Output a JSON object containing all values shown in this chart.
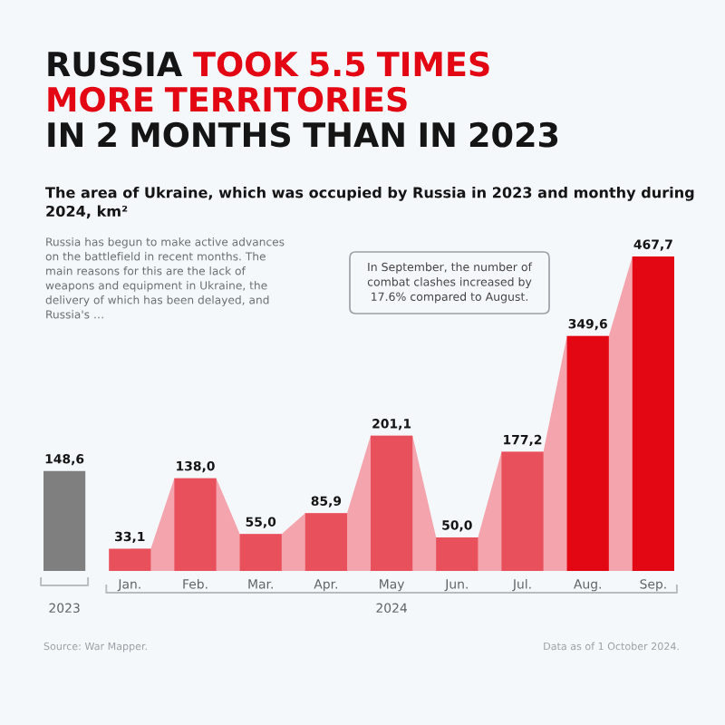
{
  "chart_data": {
    "type": "bar",
    "title": "RUSSIA TOOK 5.5 TIMES\nMORE TERRITORIES\nIN 2 MONTHS THAN IN 2023",
    "subtitle": "The area of Ukraine, which was occupied by Russia in 2023 and monthy during\n2024, km²",
    "categories": [
      null,
      "Jan.",
      "Feb.",
      "Mar.",
      "Apr.",
      "May",
      "Jun.",
      "Jul.",
      "Aug.",
      "Sep."
    ],
    "series": [
      {
        "type": "area",
        "color": "#f4a4ac",
        "values": [
          null,
          33.1,
          138.0,
          55.0,
          85.9,
          201.1,
          50.0,
          177.2,
          349.6,
          467.7
        ]
      },
      {
        "colors": [
          "#7f7f7f",
          "#e8505c",
          "#e8505c",
          "#e8505c",
          "#e8505c",
          "#e8505c",
          "#e8505c",
          "#e8505c",
          "#e30613",
          "#e30613"
        ],
        "values": [
          148.6,
          33.1,
          138.0,
          55.0,
          85.9,
          201.1,
          50.0,
          177.2,
          349.6,
          467.7
        ],
        "value_labels": [
          "148,6",
          "33,1",
          "138,0",
          "55,0",
          "85,9",
          "201,1",
          "50,0",
          "177,2",
          "349,6",
          "467,7"
        ]
      }
    ],
    "ylim": [
      0,
      480
    ],
    "tick_labels": "x",
    "annotations": [
      "Russia has begun to make active advances\non the battlefield in recent months. The\nmain reasons for this are the lack of\nweapons and equipment in Ukraine, the\ndelivery of which has been delayed, and\nRussia's …",
      "In September, the number of\ncombat clashes increased by\n17.6% compared to August.",
      "2023",
      "2024",
      "Source: War Mapper.",
      "Data as of 1 October 2024."
    ]
  }
}
